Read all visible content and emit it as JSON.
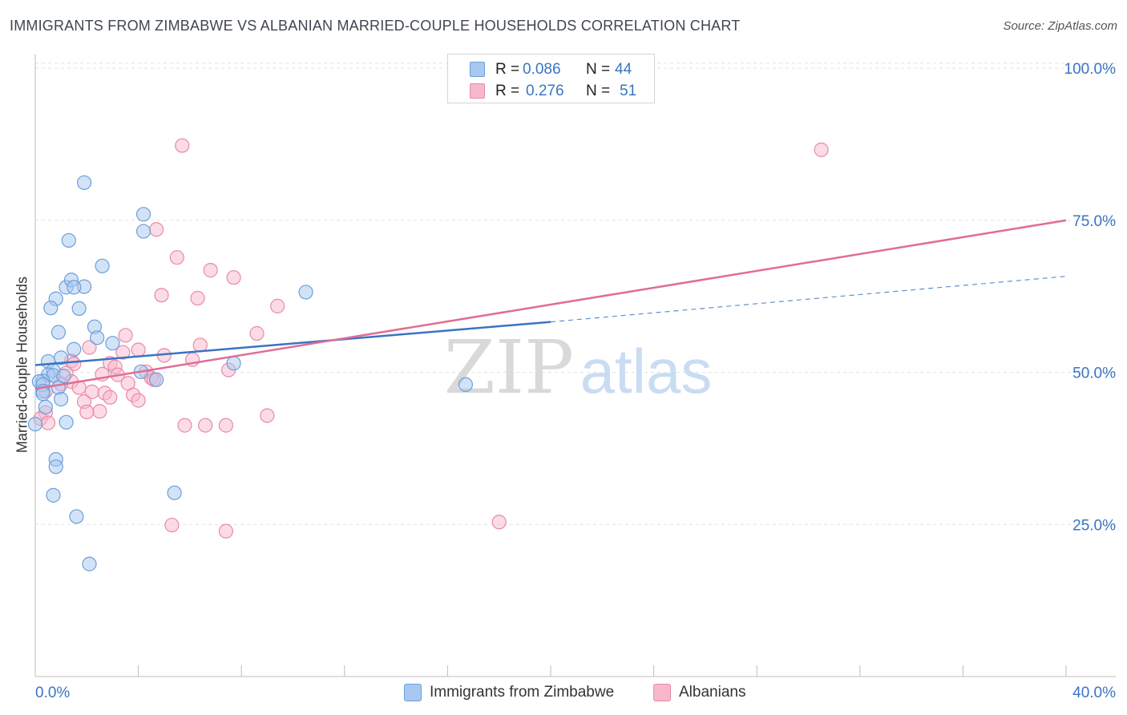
{
  "header": {
    "title": "IMMIGRANTS FROM ZIMBABWE VS ALBANIAN MARRIED-COUPLE HOUSEHOLDS CORRELATION CHART",
    "source": "Source: ZipAtlas.com"
  },
  "legend": {
    "rows": [
      {
        "r_label": "R =",
        "r_value": "0.086",
        "n_label": "N =",
        "n_value": "44"
      },
      {
        "r_label": "R =",
        "r_value": "0.276",
        "n_label": "N =",
        "n_value": "51"
      }
    ]
  },
  "bottom_legend": {
    "series1": "Immigrants from Zimbabwe",
    "series2": "Albanians"
  },
  "watermark": {
    "part1": "ZIP",
    "part2": "atlas"
  },
  "colors": {
    "series1_fill": "#a8c8f0",
    "series1_stroke": "#6b9fdc",
    "series1_line": "#3a74c4",
    "series2_fill": "#f7b8cb",
    "series2_stroke": "#e98aa8",
    "series2_line": "#e06d96",
    "tick_label": "#3a74c4",
    "grid": "#e2e2e2"
  },
  "chart_data": {
    "type": "scatter",
    "title": "IMMIGRANTS FROM ZIMBABWE VS ALBANIAN MARRIED-COUPLE HOUSEHOLDS CORRELATION CHART",
    "xlabel": "",
    "ylabel": "Married-couple Households",
    "xlim": [
      0,
      40
    ],
    "ylim": [
      0,
      102
    ],
    "x_ticks": [
      {
        "value": 0,
        "label": "0.0%"
      },
      {
        "value": 40,
        "label": "40.0%"
      }
    ],
    "y_ticks": [
      {
        "value": 25,
        "label": "25.0%"
      },
      {
        "value": 50,
        "label": "50.0%"
      },
      {
        "value": 75,
        "label": "75.0%"
      },
      {
        "value": 100,
        "label": "100.0%"
      }
    ],
    "series": [
      {
        "name": "Immigrants from Zimbabwe",
        "r": 0.086,
        "n": 44,
        "trend": {
          "x0": 0,
          "y0": 51.2,
          "x1": 20,
          "y1": 58.3,
          "dash_to_x": 40,
          "dash_to_y": 65.8
        },
        "points": [
          [
            1.9,
            81.2
          ],
          [
            4.2,
            76.0
          ],
          [
            1.3,
            71.7
          ],
          [
            4.2,
            73.2
          ],
          [
            2.6,
            67.5
          ],
          [
            1.2,
            64.0
          ],
          [
            1.4,
            65.2
          ],
          [
            1.9,
            64.1
          ],
          [
            1.5,
            64.0
          ],
          [
            10.5,
            63.2
          ],
          [
            0.8,
            62.1
          ],
          [
            0.6,
            60.6
          ],
          [
            1.7,
            60.5
          ],
          [
            2.3,
            57.5
          ],
          [
            0.9,
            56.6
          ],
          [
            2.4,
            55.7
          ],
          [
            3.0,
            54.8
          ],
          [
            1.5,
            53.8
          ],
          [
            1.0,
            52.4
          ],
          [
            0.5,
            51.8
          ],
          [
            7.7,
            51.5
          ],
          [
            0.7,
            50.3
          ],
          [
            4.1,
            50.1
          ],
          [
            0.5,
            49.6
          ],
          [
            0.7,
            49.5
          ],
          [
            1.1,
            49.4
          ],
          [
            0.3,
            48.6
          ],
          [
            0.15,
            48.5
          ],
          [
            4.7,
            48.8
          ],
          [
            0.3,
            48.0
          ],
          [
            16.7,
            48.0
          ],
          [
            0.9,
            47.5
          ],
          [
            0.3,
            46.9
          ],
          [
            1.0,
            45.6
          ],
          [
            0.4,
            44.3
          ],
          [
            1.2,
            41.8
          ],
          [
            0.0,
            41.5
          ],
          [
            0.8,
            35.7
          ],
          [
            0.8,
            34.5
          ],
          [
            5.4,
            30.2
          ],
          [
            0.7,
            29.8
          ],
          [
            1.6,
            26.3
          ],
          [
            2.1,
            18.5
          ],
          [
            0.3,
            46.5
          ]
        ]
      },
      {
        "name": "Albanians",
        "r": 0.276,
        "n": 51,
        "trend": {
          "x0": 0,
          "y0": 47.3,
          "x1": 40,
          "y1": 75.0
        },
        "points": [
          [
            5.7,
            87.3
          ],
          [
            30.5,
            86.6
          ],
          [
            4.7,
            73.5
          ],
          [
            5.5,
            68.9
          ],
          [
            6.8,
            66.8
          ],
          [
            7.7,
            65.6
          ],
          [
            4.9,
            62.7
          ],
          [
            6.3,
            62.2
          ],
          [
            9.4,
            60.9
          ],
          [
            8.6,
            56.4
          ],
          [
            3.5,
            56.1
          ],
          [
            6.4,
            54.5
          ],
          [
            2.1,
            54.1
          ],
          [
            4.0,
            53.7
          ],
          [
            3.4,
            53.3
          ],
          [
            5.0,
            52.8
          ],
          [
            6.1,
            52.1
          ],
          [
            1.4,
            51.9
          ],
          [
            2.9,
            51.5
          ],
          [
            1.5,
            51.4
          ],
          [
            3.1,
            50.9
          ],
          [
            7.5,
            50.4
          ],
          [
            4.3,
            50.1
          ],
          [
            1.2,
            49.9
          ],
          [
            3.2,
            49.6
          ],
          [
            2.6,
            49.7
          ],
          [
            4.5,
            49.1
          ],
          [
            1.4,
            48.5
          ],
          [
            3.6,
            48.2
          ],
          [
            1.0,
            48.1
          ],
          [
            4.6,
            48.8
          ],
          [
            1.7,
            47.5
          ],
          [
            2.2,
            46.8
          ],
          [
            2.7,
            46.6
          ],
          [
            0.4,
            46.9
          ],
          [
            3.8,
            46.3
          ],
          [
            2.9,
            45.9
          ],
          [
            4.0,
            45.4
          ],
          [
            1.9,
            45.2
          ],
          [
            2.5,
            43.6
          ],
          [
            2.0,
            43.5
          ],
          [
            9.0,
            42.9
          ],
          [
            0.4,
            43.4
          ],
          [
            0.2,
            42.4
          ],
          [
            0.5,
            41.7
          ],
          [
            5.8,
            41.3
          ],
          [
            6.6,
            41.3
          ],
          [
            7.4,
            41.3
          ],
          [
            5.3,
            24.9
          ],
          [
            18.0,
            25.4
          ],
          [
            7.4,
            23.9
          ]
        ]
      }
    ]
  }
}
